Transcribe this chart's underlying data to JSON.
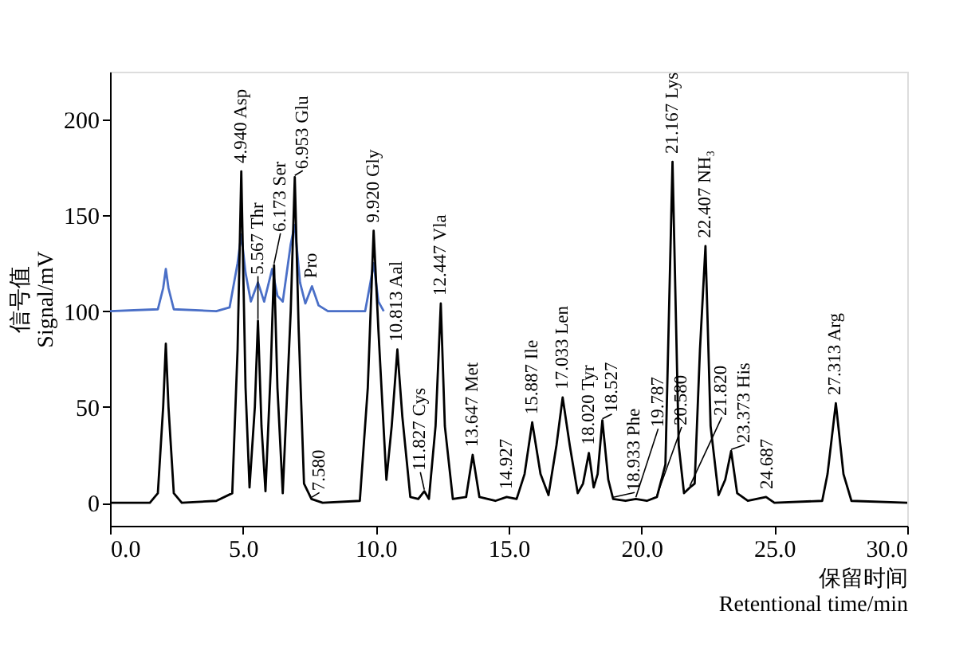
{
  "chart_data": {
    "type": "line",
    "xlabel": "保留时间\nRetentional time/min",
    "ylabel": "信号值\nSignal/mV",
    "xlim": [
      0,
      30
    ],
    "xticks": [
      {
        "value": 0,
        "label": "0.0"
      },
      {
        "value": 5,
        "label": "5.0"
      },
      {
        "value": 10,
        "label": "10.0"
      },
      {
        "value": 15,
        "label": "15.0"
      },
      {
        "value": 20,
        "label": "20.0"
      },
      {
        "value": 25,
        "label": "25.0"
      },
      {
        "value": 30,
        "label": "30.0"
      }
    ],
    "ylim": [
      -12,
      225
    ],
    "yticks": [
      0,
      50,
      100,
      150,
      200
    ],
    "grid": false,
    "legend": false,
    "marker": "none",
    "line_style": "solid",
    "series": [
      {
        "color": "#4a6fc7",
        "x": [
          0,
          1.8,
          2.0,
          2.1,
          2.2,
          2.4,
          4.0,
          4.5,
          4.8,
          4.94,
          5.1,
          5.3,
          5.567,
          5.8,
          6.1,
          6.3,
          6.5,
          6.8,
          6.95,
          7.15,
          7.35,
          7.6,
          7.85,
          8.2,
          8.8,
          9.6,
          9.8,
          9.92,
          10.1,
          10.3
        ],
        "values": [
          100,
          101,
          112,
          122,
          112,
          101,
          100,
          102,
          125,
          140,
          120,
          105,
          115,
          105,
          122,
          108,
          105,
          135,
          145,
          115,
          104,
          113,
          103,
          100,
          100,
          100,
          115,
          125,
          105,
          100
        ]
      },
      {
        "color": "#000000",
        "x": [
          0,
          1.5,
          1.8,
          2.0,
          2.1,
          2.2,
          2.4,
          2.7,
          4.0,
          4.6,
          4.8,
          4.94,
          5.1,
          5.25,
          5.45,
          5.567,
          5.7,
          5.85,
          6.05,
          6.173,
          6.3,
          6.5,
          6.8,
          6.953,
          7.1,
          7.3,
          7.58,
          8.0,
          9.4,
          9.7,
          9.92,
          10.1,
          10.4,
          10.6,
          10.813,
          11.0,
          11.3,
          11.6,
          11.827,
          12.0,
          12.25,
          12.447,
          12.6,
          12.9,
          13.4,
          13.647,
          13.9,
          14.5,
          14.927,
          15.3,
          15.6,
          15.887,
          16.2,
          16.5,
          16.8,
          17.033,
          17.3,
          17.6,
          17.8,
          18.02,
          18.2,
          18.35,
          18.527,
          18.75,
          18.933,
          19.4,
          19.787,
          20.2,
          20.58,
          20.9,
          21.167,
          21.4,
          21.6,
          21.82,
          22.0,
          22.2,
          22.407,
          22.6,
          22.9,
          23.15,
          23.373,
          23.6,
          24.0,
          24.687,
          25.0,
          26.8,
          27.0,
          27.313,
          27.6,
          27.9,
          30
        ],
        "values": [
          0,
          0,
          5,
          50,
          83,
          50,
          5,
          0,
          1,
          5,
          80,
          173,
          60,
          8,
          50,
          95,
          40,
          6,
          70,
          124,
          60,
          5,
          100,
          170,
          90,
          10,
          2,
          0,
          1,
          60,
          142,
          90,
          12,
          40,
          80,
          45,
          3,
          2,
          6,
          2,
          40,
          104,
          40,
          2,
          3,
          25,
          3,
          1,
          3,
          2,
          15,
          42,
          15,
          4,
          30,
          55,
          30,
          5,
          10,
          26,
          8,
          15,
          43,
          12,
          2,
          1,
          2,
          1,
          3,
          20,
          178,
          30,
          5,
          8,
          10,
          80,
          134,
          40,
          4,
          12,
          27,
          5,
          1,
          3,
          0,
          1,
          15,
          52,
          15,
          1,
          0
        ]
      }
    ],
    "annotations": [
      {
        "text": "4.940 Asp",
        "x": 4.94,
        "y": 173
      },
      {
        "text": "5.567 Thr",
        "x": 5.567,
        "y": 95
      },
      {
        "text": "6.173 Ser",
        "x": 6.173,
        "y": 124
      },
      {
        "text": "6.953 Glu",
        "x": 6.953,
        "y": 170
      },
      {
        "text": "Pro",
        "x": 7.6,
        "y": 113
      },
      {
        "text": "7.580",
        "x": 7.58,
        "y": 2
      },
      {
        "text": "9.920 Gly",
        "x": 9.92,
        "y": 142
      },
      {
        "text": "10.813 Aal",
        "x": 10.813,
        "y": 80
      },
      {
        "text": "11.827 Cys",
        "x": 11.827,
        "y": 6
      },
      {
        "text": "12.447 Vla",
        "x": 12.447,
        "y": 104
      },
      {
        "text": "13.647 Met",
        "x": 13.647,
        "y": 25
      },
      {
        "text": "14.927",
        "x": 14.927,
        "y": 3
      },
      {
        "text": "15.887 Ile",
        "x": 15.887,
        "y": 42
      },
      {
        "text": "17.033 Len",
        "x": 17.033,
        "y": 55
      },
      {
        "text": "18.020 Tyr",
        "x": 18.02,
        "y": 26
      },
      {
        "text": "18.527",
        "x": 18.527,
        "y": 43
      },
      {
        "text": "18.933 Phe",
        "x": 18.933,
        "y": 2
      },
      {
        "text": "19.787",
        "x": 19.787,
        "y": 2
      },
      {
        "text": "20.580",
        "x": 20.58,
        "y": 3
      },
      {
        "text": "21.167 Lys",
        "x": 21.167,
        "y": 178
      },
      {
        "text": "21.820",
        "x": 21.82,
        "y": 8
      },
      {
        "text": "22.407 NH₃",
        "x": 22.407,
        "y": 134
      },
      {
        "text": "23.373 His",
        "x": 23.373,
        "y": 27
      },
      {
        "text": "24.687",
        "x": 24.687,
        "y": 3
      },
      {
        "text": "27.313 Arg",
        "x": 27.313,
        "y": 52
      }
    ]
  }
}
